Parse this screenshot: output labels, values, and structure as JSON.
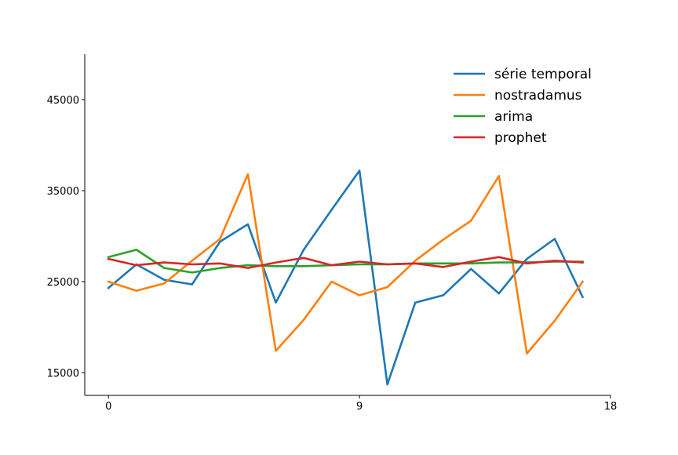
{
  "chart_data": {
    "type": "line",
    "title": "",
    "xlabel": "",
    "ylabel": "",
    "x": [
      0,
      1,
      2,
      3,
      4,
      5,
      6,
      7,
      8,
      9,
      10,
      11,
      12,
      13,
      14,
      15,
      16,
      17
    ],
    "xlim": [
      -0.85,
      18
    ],
    "ylim": [
      12500,
      50000
    ],
    "xticks": [
      0,
      9,
      18
    ],
    "yticks": [
      15000,
      25000,
      35000,
      45000
    ],
    "xtick_labels": [
      "0",
      "9",
      "18"
    ],
    "ytick_labels": [
      "15000",
      "25000",
      "35000",
      "45000"
    ],
    "grid": false,
    "legend": "top-right",
    "series": [
      {
        "name": "série temporal",
        "color": "#1f77b4",
        "values": [
          24300,
          26900,
          25200,
          24700,
          29400,
          31300,
          22700,
          28500,
          32900,
          37200,
          13700,
          22700,
          23500,
          26400,
          23700,
          27500,
          29700,
          23300
        ]
      },
      {
        "name": "nostradamus",
        "color": "#ff7f0e",
        "values": [
          25000,
          24000,
          24800,
          27300,
          29700,
          36800,
          17400,
          20800,
          25000,
          23500,
          24400,
          27300,
          29600,
          31700,
          36600,
          17100,
          20700,
          25000
        ]
      },
      {
        "name": "arima",
        "color": "#2ca02c",
        "values": [
          27700,
          28500,
          26500,
          26000,
          26500,
          26800,
          26700,
          26700,
          26800,
          26900,
          26900,
          27000,
          27000,
          27000,
          27100,
          27100,
          27200,
          27200
        ]
      },
      {
        "name": "prophet",
        "color": "#d62728",
        "values": [
          27500,
          26800,
          27100,
          26900,
          27000,
          26500,
          27100,
          27600,
          26800,
          27200,
          26900,
          27000,
          26600,
          27200,
          27700,
          27000,
          27300,
          27100
        ]
      }
    ]
  }
}
